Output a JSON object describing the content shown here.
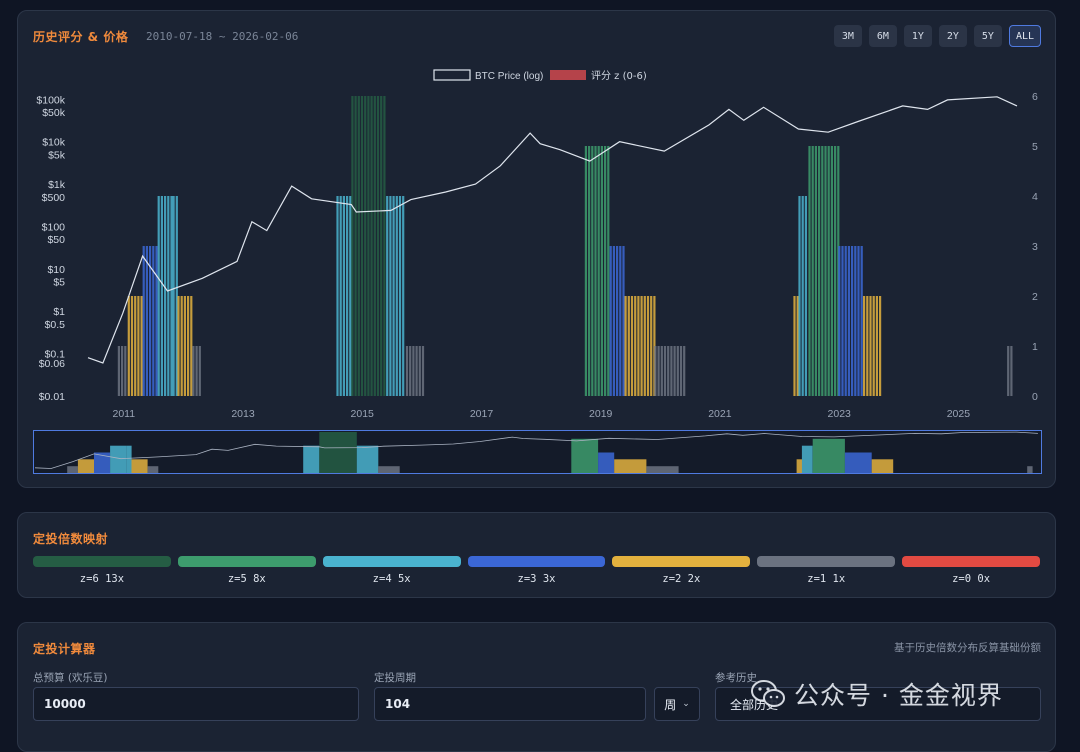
{
  "header": {
    "title": "历史评分 & 价格",
    "range": "2010-07-18 ~ 2026-02-06",
    "range_buttons": [
      "3M",
      "6M",
      "1Y",
      "2Y",
      "5Y",
      "ALL"
    ],
    "active_range": "ALL"
  },
  "chart_data": {
    "type": "line",
    "legend": [
      {
        "name": "BTC Price (log)",
        "color": "#e2e8f0"
      },
      {
        "name": "评分 z (0-6)",
        "color": "#b5434a"
      }
    ],
    "legend_placement": "top-center",
    "x_ticks": [
      "2011",
      "2013",
      "2015",
      "2017",
      "2019",
      "2021",
      "2023",
      "2025"
    ],
    "y_left_ticks": [
      "$100k",
      "$50k",
      "$10k",
      "$5k",
      "$1k",
      "$500",
      "$100",
      "$50",
      "$10",
      "$5",
      "$1",
      "$0.5",
      "$0.1",
      "$0.06",
      "$0.01"
    ],
    "y_left_scale": "log",
    "y_left_range": [
      0.01,
      120000
    ],
    "y_right_ticks": [
      "6",
      "5",
      "4",
      "3",
      "2",
      "1",
      "0"
    ],
    "y_right_range": [
      0,
      6
    ],
    "price_series": {
      "name": "BTC Price (log)",
      "points": [
        [
          "2010-07",
          0.08
        ],
        [
          "2010-10",
          0.06
        ],
        [
          "2011-02",
          0.9
        ],
        [
          "2011-06",
          20
        ],
        [
          "2011-11",
          3
        ],
        [
          "2012-06",
          6
        ],
        [
          "2013-01",
          15
        ],
        [
          "2013-04",
          130
        ],
        [
          "2013-07",
          80
        ],
        [
          "2013-12",
          900
        ],
        [
          "2014-04",
          450
        ],
        [
          "2014-12",
          330
        ],
        [
          "2015-01",
          220
        ],
        [
          "2015-08",
          240
        ],
        [
          "2015-12",
          430
        ],
        [
          "2016-07",
          650
        ],
        [
          "2017-01",
          1000
        ],
        [
          "2017-06",
          2700
        ],
        [
          "2017-12",
          16000
        ],
        [
          "2018-02",
          9000
        ],
        [
          "2018-06",
          6500
        ],
        [
          "2018-12",
          3500
        ],
        [
          "2019-06",
          10000
        ],
        [
          "2020-03",
          6000
        ],
        [
          "2020-12",
          25000
        ],
        [
          "2021-04",
          58000
        ],
        [
          "2021-07",
          32000
        ],
        [
          "2021-11",
          65000
        ],
        [
          "2022-06",
          20000
        ],
        [
          "2022-12",
          16800
        ],
        [
          "2023-06",
          30000
        ],
        [
          "2024-03",
          70000
        ],
        [
          "2024-08",
          58000
        ],
        [
          "2024-12",
          97000
        ],
        [
          "2025-10",
          115000
        ],
        [
          "2026-02",
          70000
        ]
      ]
    },
    "z_series": {
      "name": "评分 z (0-6)",
      "clusters": [
        {
          "start": "2011-01",
          "end": "2011-03",
          "z": 1
        },
        {
          "start": "2011-03",
          "end": "2011-06",
          "z": 2
        },
        {
          "start": "2011-06",
          "end": "2011-09",
          "z": 3
        },
        {
          "start": "2011-09",
          "end": "2011-12",
          "z": 4
        },
        {
          "start": "2011-12",
          "end": "2012-01",
          "z": 4
        },
        {
          "start": "2012-01",
          "end": "2012-04",
          "z": 2
        },
        {
          "start": "2012-04",
          "end": "2012-06",
          "z": 1
        },
        {
          "start": "2014-09",
          "end": "2014-12",
          "z": 4
        },
        {
          "start": "2014-12",
          "end": "2015-07",
          "z": 6
        },
        {
          "start": "2015-07",
          "end": "2015-11",
          "z": 4
        },
        {
          "start": "2015-11",
          "end": "2016-03",
          "z": 1
        },
        {
          "start": "2018-11",
          "end": "2019-04",
          "z": 5
        },
        {
          "start": "2019-04",
          "end": "2019-07",
          "z": 3
        },
        {
          "start": "2019-07",
          "end": "2020-01",
          "z": 2
        },
        {
          "start": "2020-01",
          "end": "2020-07",
          "z": 1
        },
        {
          "start": "2022-05",
          "end": "2022-06",
          "z": 2
        },
        {
          "start": "2022-06",
          "end": "2022-08",
          "z": 4
        },
        {
          "start": "2022-08",
          "end": "2023-02",
          "z": 5
        },
        {
          "start": "2023-02",
          "end": "2023-07",
          "z": 3
        },
        {
          "start": "2023-07",
          "end": "2023-11",
          "z": 2
        },
        {
          "start": "2025-12",
          "end": "2026-01",
          "z": 1
        }
      ]
    },
    "grid": false
  },
  "mapping": {
    "title": "定投倍数映射",
    "items": [
      {
        "label": "z=6 13x",
        "color": "#255d44"
      },
      {
        "label": "z=5 8x",
        "color": "#3d9c6d"
      },
      {
        "label": "z=4 5x",
        "color": "#4ab3cf"
      },
      {
        "label": "z=3 3x",
        "color": "#3b67d6"
      },
      {
        "label": "z=2 2x",
        "color": "#e3b13e"
      },
      {
        "label": "z=1 1x",
        "color": "#6b7280"
      },
      {
        "label": "z=0 0x",
        "color": "#e24a42"
      }
    ]
  },
  "calculator": {
    "title": "定投计算器",
    "hint": "基于历史倍数分布反算基础份额",
    "budget_label": "总预算 (欢乐豆)",
    "budget_value": "10000",
    "periods_label": "定投周期",
    "periods_value": "104",
    "unit_value": "周",
    "history_label": "参考历史",
    "history_value": "全部历史"
  },
  "watermark": {
    "text": "公众号 · 金金视界"
  }
}
